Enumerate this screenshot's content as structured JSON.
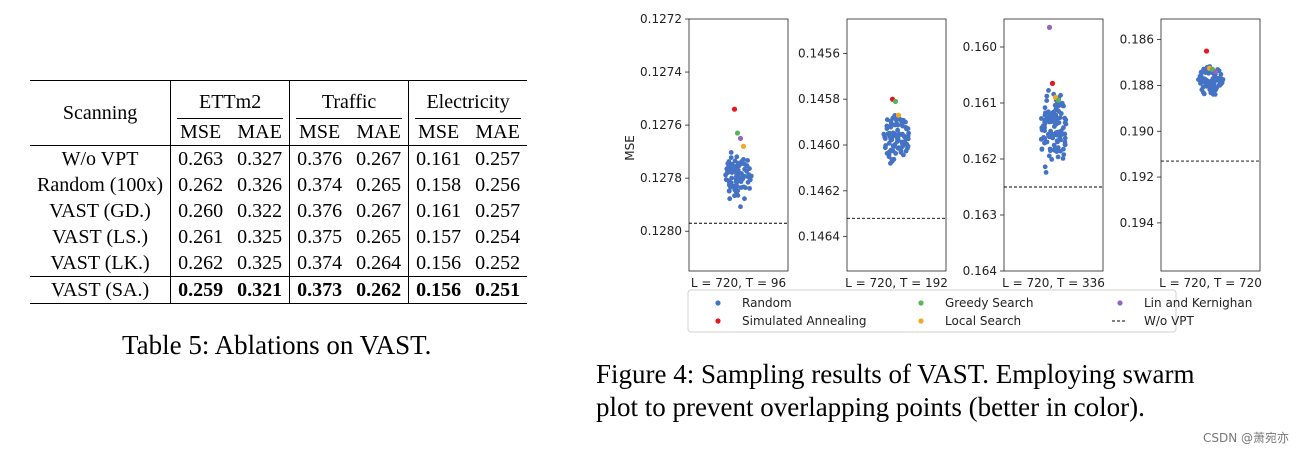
{
  "table": {
    "header": {
      "row_label": "Scanning",
      "groups": [
        "ETTm2",
        "Traffic",
        "Electricity"
      ],
      "metrics": [
        "MSE",
        "MAE",
        "MSE",
        "MAE",
        "MSE",
        "MAE"
      ]
    },
    "rows": [
      {
        "name": "W/o VPT",
        "values": [
          "0.263",
          "0.327",
          "0.376",
          "0.267",
          "0.161",
          "0.257"
        ]
      },
      {
        "name": "Random (100x)",
        "values": [
          "0.262",
          "0.326",
          "0.374",
          "0.265",
          "0.158",
          "0.256"
        ]
      },
      {
        "name": "VAST (GD.)",
        "values": [
          "0.260",
          "0.322",
          "0.376",
          "0.267",
          "0.161",
          "0.257"
        ]
      },
      {
        "name": "VAST (LS.)",
        "values": [
          "0.261",
          "0.325",
          "0.375",
          "0.265",
          "0.157",
          "0.254"
        ]
      },
      {
        "name": "VAST (LK.)",
        "values": [
          "0.262",
          "0.325",
          "0.374",
          "0.264",
          "0.156",
          "0.252"
        ]
      },
      {
        "name": "VAST (SA.)",
        "values": [
          "0.259",
          "0.321",
          "0.373",
          "0.262",
          "0.156",
          "0.251"
        ]
      }
    ],
    "caption": "Table 5: Ablations on VAST."
  },
  "figure": {
    "caption_line1": "Figure 4: Sampling results of VAST. Employing swarm",
    "caption_line2": "plot to prevent overlapping points (better in color)."
  },
  "watermark": "CSDN @萧宛亦",
  "chart_data": {
    "type": "scatter",
    "ylabel": "MSE",
    "colors": {
      "Random": "#4472c4",
      "Greedy Search": "#59b359",
      "Lin and Kernighan": "#9467bd",
      "Simulated Annealing": "#e8141e",
      "Local Search": "#f5a623",
      "W/o VPT": "#000000"
    },
    "legend": [
      "Random",
      "Greedy Search",
      "Lin and Kernighan",
      "Simulated Annealing",
      "Local Search",
      "W/o VPT"
    ],
    "panels": [
      {
        "xlabel": "L = 720, T = 96",
        "ylim": [
          0.1272,
          0.12815
        ],
        "yticks": [
          "0.1272",
          "0.1274",
          "0.1276",
          "0.1278",
          "0.1280"
        ],
        "ytick_values": [
          0.1272,
          0.1274,
          0.1276,
          0.1278,
          0.128
        ],
        "random_center": 0.1278,
        "random_spread": 6.5e-05,
        "random_count": 90,
        "wo_vpt": 0.12797,
        "points": {
          "Simulated Annealing": 0.12754,
          "Greedy Search": 0.12763,
          "Lin and Kernighan": 0.12765,
          "Local Search": 0.12768
        }
      },
      {
        "xlabel": "L = 720, T = 192",
        "ylim": [
          0.14545,
          0.14655
        ],
        "yticks": [
          "0.1456",
          "0.1458",
          "0.1460",
          "0.1462",
          "0.1464"
        ],
        "ytick_values": [
          0.1456,
          0.1458,
          0.146,
          0.1462,
          0.1464
        ],
        "random_center": 0.14597,
        "random_spread": 7e-05,
        "random_count": 90,
        "wo_vpt": 0.14632,
        "points": {
          "Simulated Annealing": 0.1458,
          "Greedy Search": 0.14581,
          "Local Search": 0.14587
        }
      },
      {
        "xlabel": "L = 720, T = 336",
        "ylim": [
          0.1595,
          0.164
        ],
        "yticks": [
          "0.160",
          "0.161",
          "0.162",
          "0.163",
          "0.164"
        ],
        "ytick_values": [
          0.16,
          0.161,
          0.162,
          0.163,
          0.164
        ],
        "random_center": 0.1615,
        "random_spread": 0.0005,
        "random_count": 110,
        "wo_vpt": 0.1625,
        "points": {
          "Lin and Kernighan": 0.15965,
          "Simulated Annealing": 0.16065,
          "Local Search": 0.1609,
          "Greedy Search": 0.16095
        }
      },
      {
        "xlabel": "L = 720, T = 720",
        "ylim": [
          0.1851,
          0.1961
        ],
        "yticks": [
          "0.186",
          "0.188",
          "0.190",
          "0.192",
          "0.194"
        ],
        "ytick_values": [
          0.186,
          0.188,
          0.19,
          0.192,
          0.194
        ],
        "random_center": 0.1878,
        "random_spread": 0.00045,
        "random_count": 90,
        "wo_vpt": 0.1913,
        "points": {
          "Simulated Annealing": 0.1865,
          "Local Search": 0.18725,
          "Greedy Search": 0.1873,
          "Lin and Kernighan": 0.1874
        }
      }
    ]
  }
}
